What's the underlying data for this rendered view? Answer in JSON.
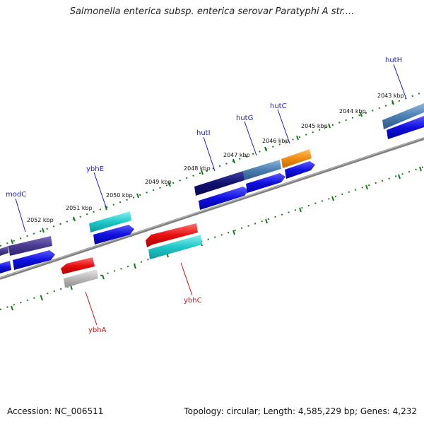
{
  "title": "Salmonella enterica subsp. enterica serovar Paratyphi A str....",
  "footer": {
    "accession": "Accession: NC_006511",
    "topology": "Topology: circular; Length: 4,585,229 bp; Genes: 4,232"
  },
  "kbp_labels": [
    "2052 kbp",
    "2051 kbp",
    "2050 kbp",
    "2049 kbp",
    "2048 kbp",
    "2047 kbp",
    "2046 kbp",
    "2045 kbp",
    "2044 kbp",
    "2043 kbp"
  ],
  "gene_labels": [
    {
      "name": "modC",
      "strand": "forward"
    },
    {
      "name": "ybhE",
      "strand": "forward"
    },
    {
      "name": "hutI",
      "strand": "forward"
    },
    {
      "name": "hutG",
      "strand": "forward"
    },
    {
      "name": "hutC",
      "strand": "forward"
    },
    {
      "name": "hutH",
      "strand": "forward"
    },
    {
      "name": "ybhC",
      "strand": "reverse"
    },
    {
      "name": "ybhA",
      "strand": "reverse"
    }
  ],
  "colors": {
    "forward_label": "#1a1acc",
    "reverse_label": "#cc1111",
    "tick": "#1a7a1a",
    "backbone": "#808080",
    "cds_blue": "#1010e0",
    "cds_cyan": "#20c8c8",
    "cds_red": "#e81010",
    "cds_orange": "#f08c10",
    "cds_gray": "#b0b0b0",
    "cds_navy": "#101070",
    "cds_purple": "#4a3a90",
    "cds_steel": "#4a7fb0"
  }
}
